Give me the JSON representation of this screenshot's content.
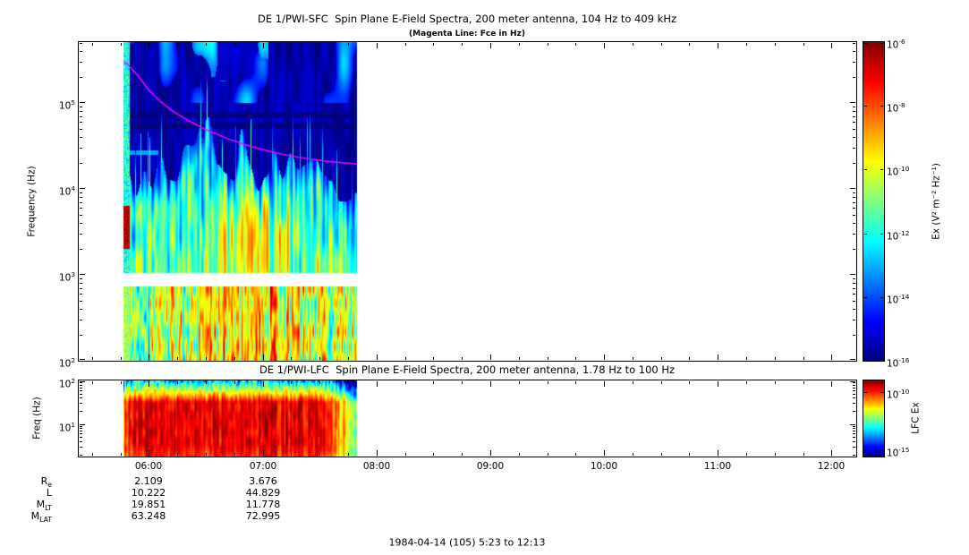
{
  "figure": {
    "footer": "1984-04-14 (105) 5:23 to 12:13",
    "background": "#ffffff"
  },
  "colors": {
    "axis": "#000000",
    "magenta_line": "#ff00ff"
  },
  "chart_data": [
    {
      "type": "heatmap",
      "instrument": "DE 1/PWI-SFC",
      "title": "DE 1/PWI-SFC  Spin Plane E-Field Spectra, 200 meter antenna, 104 Hz to 409 kHz",
      "subtitle": "(Magenta Line: Fce in Hz)",
      "ylabel": "Frequency (Hz)",
      "yscale": "log",
      "ylim_hz": [
        100,
        511000
      ],
      "ytick_exponents": [
        5,
        4,
        3,
        2
      ],
      "xlim_hours": [
        5.3833,
        12.2167
      ],
      "xtick_hours": [
        6,
        7,
        8,
        9,
        10,
        11,
        12
      ],
      "xtick_labels": [
        "06:00",
        "07:00",
        "08:00",
        "09:00",
        "10:00",
        "11:00",
        "12:00"
      ],
      "data_span_hours": [
        5.78,
        7.83
      ],
      "data_gap_band_hz": [
        740,
        1050
      ],
      "colorbar": {
        "label": "Ex (V² m⁻² Hz⁻¹)",
        "log10_range": [
          -16,
          -6
        ],
        "tick_exponents": [
          -6,
          -8,
          -10,
          -12,
          -14,
          -16
        ]
      },
      "fce_line_hz": {
        "color": "#ff00ff",
        "points_hours_hz": [
          [
            5.78,
            310000
          ],
          [
            5.9,
            210000
          ],
          [
            6.0,
            140000
          ],
          [
            6.1,
            105000
          ],
          [
            6.2,
            82000
          ],
          [
            6.35,
            62000
          ],
          [
            6.5,
            49000
          ],
          [
            6.7,
            38000
          ],
          [
            6.9,
            31000
          ],
          [
            7.1,
            26500
          ],
          [
            7.3,
            23500
          ],
          [
            7.55,
            21000
          ],
          [
            7.83,
            19500
          ]
        ]
      },
      "features": {
        "broadband_emission_hz": [
          100,
          25000
        ],
        "intense_low_band_hz": [
          100,
          740
        ],
        "dark_instrument_bands_hz": [
          [
            50000,
            59000
          ],
          [
            66000,
            78000
          ]
        ],
        "bright_upper_patches_hz": [
          180000,
          450000
        ],
        "peak_intensity_interval_hours": [
          6.5,
          7.3
        ]
      }
    },
    {
      "type": "heatmap",
      "instrument": "DE 1/PWI-LFC",
      "title": "DE 1/PWI-LFC  Spin Plane E-Field Spectra, 200 meter antenna, 1.78 Hz to 100 Hz",
      "ylabel": "Freq (Hz)",
      "yscale": "log",
      "ylim_hz": [
        1.78,
        100
      ],
      "ytick_exponents": [
        2,
        1
      ],
      "xlim_hours": [
        5.3833,
        12.2167
      ],
      "data_span_hours": [
        5.78,
        7.83
      ],
      "colorbar": {
        "label": "LFC Ex",
        "log10_range": [
          -15.5,
          -9.0
        ],
        "tick_exponents": [
          -10,
          -15
        ]
      },
      "features": {
        "saturated_red_hz": [
          3,
          40
        ],
        "speckled_green_top_hz": [
          40,
          100
        ],
        "fade_out_after_hours": 7.5
      }
    }
  ],
  "ephemeris_table": {
    "column_hours": [
      6,
      7
    ],
    "rows": [
      {
        "label": "R",
        "sub": "e",
        "values": [
          "2.109",
          "3.676"
        ]
      },
      {
        "label": "L",
        "sub": "",
        "values": [
          "10.222",
          "44.829"
        ]
      },
      {
        "label": "M",
        "sub": "LT",
        "values": [
          "19.851",
          "11.778"
        ]
      },
      {
        "label": "M",
        "sub": "LAT",
        "values": [
          "63.248",
          "72.995"
        ]
      }
    ]
  }
}
